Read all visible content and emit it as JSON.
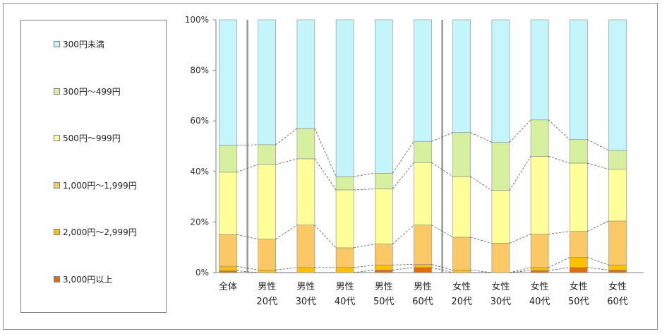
{
  "chart_data": {
    "type": "bar",
    "stacked": true,
    "percent": true,
    "categories": [
      [
        "全体"
      ],
      [
        "男性",
        "20代"
      ],
      [
        "男性",
        "30代"
      ],
      [
        "男性",
        "40代"
      ],
      [
        "男性",
        "50代"
      ],
      [
        "男性",
        "60代"
      ],
      [
        "女性",
        "20代"
      ],
      [
        "女性",
        "30代"
      ],
      [
        "女性",
        "40代"
      ],
      [
        "女性",
        "50代"
      ],
      [
        "女性",
        "60代"
      ]
    ],
    "series": [
      {
        "name": "3,000円以上",
        "color": "#e36c09",
        "values": [
          0.7,
          0,
          0,
          0,
          1.0,
          2.0,
          0,
          0,
          0.8,
          2.0,
          1.0
        ]
      },
      {
        "name": "2,000円～2,999円",
        "color": "#ffc000",
        "values": [
          1.8,
          1.0,
          2.0,
          2.0,
          2.0,
          1.2,
          1.0,
          0,
          1.2,
          4.0,
          2.0
        ]
      },
      {
        "name": "1,000円～1,999円",
        "color": "#fac864",
        "values": [
          12.5,
          12.2,
          16.8,
          7.8,
          8.3,
          15.6,
          13.0,
          11.6,
          13.2,
          10.3,
          17.4
        ]
      },
      {
        "name": "500円～999円",
        "color": "#ffff99",
        "values": [
          24.7,
          29.6,
          26.2,
          22.9,
          21.8,
          24.7,
          24.0,
          20.9,
          30.8,
          27.0,
          20.5
        ]
      },
      {
        "name": "300円～499円",
        "color": "#d7f0a0",
        "values": [
          10.6,
          7.8,
          12.0,
          5.3,
          6.2,
          8.4,
          17.4,
          19.0,
          14.4,
          9.3,
          7.4
        ]
      },
      {
        "name": "300円未満",
        "color": "#c4f5fb",
        "values": [
          49.7,
          49.4,
          43.0,
          62.0,
          60.7,
          48.1,
          44.6,
          48.5,
          39.6,
          47.4,
          51.7
        ]
      }
    ],
    "legend_order": [
      "300円未満",
      "300円～499円",
      "500円～999円",
      "1,000円～1,999円",
      "2,000円～2,999円",
      "3,000円以上"
    ],
    "yaxis": {
      "ticks": [
        "0%",
        "20%",
        "40%",
        "60%",
        "80%",
        "100%"
      ],
      "ylim": [
        0,
        100
      ]
    },
    "legend_position": "left",
    "grid": false
  }
}
